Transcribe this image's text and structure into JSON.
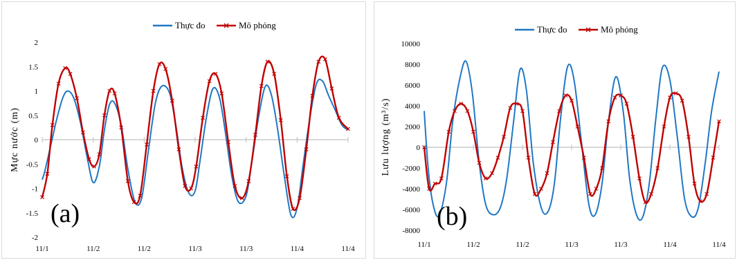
{
  "colors": {
    "measured": "#1f77c4",
    "simulated": "#c00000",
    "zero_axis": "#bfbfbf"
  },
  "chart_data": [
    {
      "type": "line",
      "panel_letter": "(a)",
      "ylabel": "Mực nước (m)",
      "xlabel": "",
      "ylim": [
        -2,
        2
      ],
      "y_ticks": [
        2,
        1.5,
        1,
        0.5,
        0,
        -0.5,
        -1,
        -1.5,
        -2
      ],
      "x_tick_labels": [
        "11/1",
        "11/2",
        "11/2",
        "11/3",
        "11/3",
        "11/4",
        "11/4"
      ],
      "grid": false,
      "legend_position": "top-center",
      "series": [
        {
          "name": "Thực đo",
          "color": "#1f77c4",
          "marker": "none",
          "x": [
            0,
            0.05,
            0.15,
            0.28,
            0.4,
            0.5,
            0.62,
            0.75,
            0.88,
            1.0,
            1.12,
            1.22,
            1.32,
            1.42,
            1.55,
            1.68,
            1.82,
            1.95,
            2.08,
            2.22,
            2.35,
            2.5,
            2.62,
            2.75,
            2.88,
            3.0,
            3.1,
            3.22,
            3.35,
            3.48,
            3.6,
            3.72,
            3.85,
            4.0,
            4.12,
            4.25,
            4.38,
            4.5,
            4.62,
            4.75,
            4.88,
            5.0,
            5.12,
            5.25,
            5.38,
            5.5,
            5.62,
            5.75,
            5.88,
            6.0
          ],
          "y": [
            -0.82,
            -0.65,
            -0.2,
            0.4,
            0.85,
            1.0,
            0.85,
            0.35,
            -0.35,
            -0.88,
            -0.55,
            0.2,
            0.72,
            0.75,
            0.3,
            -0.6,
            -1.28,
            -1.2,
            -0.25,
            0.75,
            1.1,
            0.95,
            0.3,
            -0.6,
            -1.1,
            -1.05,
            -0.4,
            0.45,
            1.05,
            0.85,
            0.1,
            -0.75,
            -1.28,
            -1.15,
            -0.4,
            0.5,
            1.1,
            0.9,
            0.2,
            -0.75,
            -1.55,
            -1.4,
            -0.5,
            0.45,
            1.15,
            1.2,
            0.9,
            0.6,
            0.3,
            0.2
          ]
        },
        {
          "name": "Mô phỏng",
          "color": "#c00000",
          "marker": "x",
          "x": [
            0,
            0.1,
            0.2,
            0.32,
            0.45,
            0.55,
            0.68,
            0.8,
            0.92,
            1.02,
            1.12,
            1.22,
            1.32,
            1.42,
            1.55,
            1.68,
            1.8,
            1.92,
            2.05,
            2.18,
            2.3,
            2.42,
            2.55,
            2.68,
            2.8,
            2.92,
            3.02,
            3.15,
            3.28,
            3.4,
            3.52,
            3.65,
            3.78,
            3.92,
            4.05,
            4.18,
            4.3,
            4.42,
            4.55,
            4.68,
            4.8,
            4.92,
            5.05,
            5.18,
            5.3,
            5.42,
            5.55,
            5.68,
            5.82,
            6.0
          ],
          "y": [
            -1.18,
            -0.7,
            0.3,
            1.15,
            1.47,
            1.35,
            0.85,
            0.15,
            -0.4,
            -0.55,
            -0.3,
            0.5,
            1.0,
            0.95,
            0.25,
            -0.85,
            -1.28,
            -1.15,
            -0.1,
            1.0,
            1.55,
            1.45,
            0.8,
            -0.2,
            -0.95,
            -1.0,
            -0.55,
            0.45,
            1.2,
            1.35,
            0.95,
            -0.05,
            -0.95,
            -1.2,
            -0.85,
            0.1,
            1.1,
            1.6,
            1.35,
            0.4,
            -0.75,
            -1.42,
            -1.2,
            -0.2,
            0.9,
            1.6,
            1.65,
            1.05,
            0.45,
            0.22
          ]
        }
      ]
    },
    {
      "type": "line",
      "panel_letter": "(b)",
      "ylabel": "Lưu lượng (m³/s)",
      "xlabel": "",
      "ylim": [
        -8000,
        10000
      ],
      "y_ticks": [
        10000,
        8000,
        6000,
        4000,
        2000,
        0,
        -2000,
        -4000,
        -6000,
        -8000
      ],
      "x_tick_labels": [
        "11/1",
        "11/2",
        "11/2",
        "11/3",
        "11/3",
        "11/4",
        "11/4"
      ],
      "grid": false,
      "legend_position": "top-center",
      "series": [
        {
          "name": "Thực đo",
          "color": "#1f77c4",
          "marker": "none",
          "x": [
            0,
            0.08,
            0.18,
            0.3,
            0.45,
            0.58,
            0.72,
            0.85,
            0.98,
            1.12,
            1.25,
            1.4,
            1.55,
            1.68,
            1.82,
            1.95,
            2.08,
            2.22,
            2.38,
            2.52,
            2.65,
            2.78,
            2.92,
            3.05,
            3.2,
            3.35,
            3.48,
            3.62,
            3.75,
            3.9,
            4.05,
            4.18,
            4.32,
            4.45,
            4.58,
            4.72,
            4.85,
            5.0,
            5.15,
            5.3,
            5.45,
            5.58,
            5.72,
            5.85,
            6.0
          ],
          "y": [
            3500,
            -2000,
            -5500,
            -6600,
            -3500,
            2500,
            6500,
            8300,
            5200,
            -1500,
            -5500,
            -6500,
            -5800,
            -3000,
            2500,
            7500,
            5500,
            -1500,
            -5800,
            -6200,
            -3500,
            3000,
            7800,
            6500,
            500,
            -5500,
            -6500,
            -3500,
            2500,
            6800,
            3500,
            -3000,
            -6500,
            -6700,
            -3500,
            3000,
            7700,
            6500,
            1000,
            -5000,
            -6700,
            -5800,
            -1500,
            3500,
            7300
          ]
        },
        {
          "name": "Mô phỏng",
          "color": "#c00000",
          "marker": "x",
          "x": [
            0,
            0.1,
            0.22,
            0.35,
            0.5,
            0.62,
            0.75,
            0.88,
            1.0,
            1.12,
            1.25,
            1.38,
            1.5,
            1.62,
            1.75,
            1.88,
            2.0,
            2.12,
            2.25,
            2.38,
            2.5,
            2.62,
            2.75,
            2.88,
            3.0,
            3.12,
            3.25,
            3.38,
            3.5,
            3.62,
            3.75,
            3.88,
            4.0,
            4.12,
            4.25,
            4.38,
            4.5,
            4.62,
            4.75,
            4.88,
            5.0,
            5.12,
            5.25,
            5.38,
            5.5,
            5.62,
            5.75,
            5.88,
            6.0
          ],
          "y": [
            0,
            -4000,
            -3500,
            -3000,
            1500,
            3500,
            4200,
            3500,
            1500,
            -1500,
            -3000,
            -2500,
            -1000,
            1000,
            3800,
            4200,
            3500,
            -1000,
            -4500,
            -4000,
            -2500,
            500,
            3500,
            5000,
            4500,
            2000,
            -1000,
            -4500,
            -4000,
            -2000,
            2500,
            4800,
            5000,
            4200,
            1000,
            -3000,
            -5300,
            -4500,
            -2000,
            2000,
            4800,
            5200,
            4500,
            1000,
            -3500,
            -5200,
            -4500,
            -1000,
            2500
          ]
        }
      ]
    }
  ]
}
